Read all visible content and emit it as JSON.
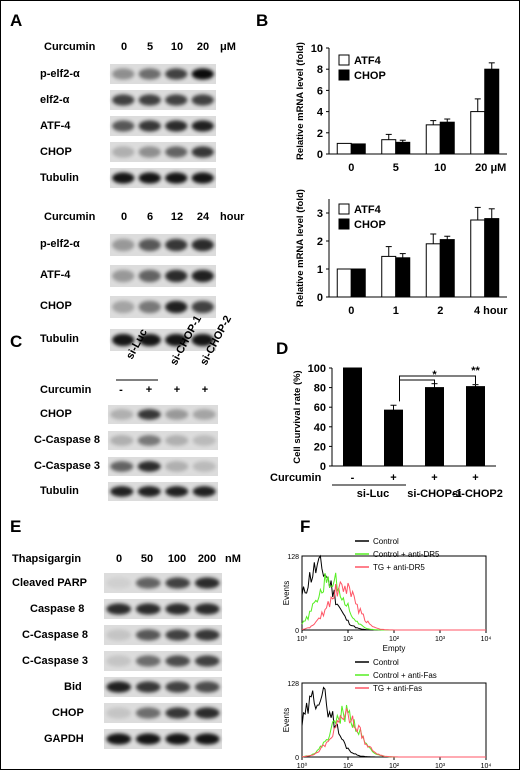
{
  "panel_labels": {
    "A": "A",
    "B": "B",
    "C": "C",
    "D": "D",
    "E": "E",
    "F": "F"
  },
  "blot_A1": {
    "treatment": "Curcumin",
    "doses": [
      "0",
      "5",
      "10",
      "20"
    ],
    "unit": "μM",
    "rows": [
      "p-elf2-α",
      "elf2-α",
      "ATF-4",
      "CHOP",
      "Tubulin"
    ]
  },
  "blot_A2": {
    "treatment": "Curcumin",
    "times": [
      "0",
      "6",
      "12",
      "24"
    ],
    "unit": "hour",
    "rows": [
      "p-elf2-α",
      "ATF-4",
      "CHOP",
      "Tubulin"
    ]
  },
  "blot_C": {
    "groups": [
      "si-Luc",
      "si-CHOP-1",
      "si-CHOP-2"
    ],
    "treatment": "Curcumin",
    "curcumin_signs": [
      "-",
      "+",
      "+",
      "+"
    ],
    "rows": [
      "CHOP",
      "C-Caspase 8",
      "C-Caspase 3",
      "Tubulin"
    ]
  },
  "blot_E": {
    "treatment": "Thapsigargin",
    "doses": [
      "0",
      "50",
      "100",
      "200"
    ],
    "unit": "nM",
    "rows": [
      "Cleaved PARP",
      "Caspase 8",
      "C-Caspase 8",
      "C-Caspase 3",
      "Bid",
      "CHOP",
      "GAPDH"
    ]
  },
  "chart_data": [
    {
      "id": "B-top",
      "type": "bar",
      "ylabel": "Relative mRNA level (fold)",
      "ylim": [
        0,
        10
      ],
      "yticks": [
        "0",
        "2",
        "4",
        "6",
        "8",
        "10"
      ],
      "categories": [
        "0",
        "5",
        "10",
        "20 μM"
      ],
      "series": [
        {
          "name": "ATF4",
          "values": [
            1.0,
            1.35,
            2.75,
            4.0
          ],
          "errors": [
            0.0,
            0.5,
            0.4,
            1.2
          ],
          "color": "#ffffff"
        },
        {
          "name": "CHOP",
          "values": [
            0.95,
            1.1,
            3.0,
            8.0
          ],
          "errors": [
            0.0,
            0.2,
            0.3,
            0.6
          ],
          "color": "#000000"
        }
      ],
      "legend": "top-left"
    },
    {
      "id": "B-bottom",
      "type": "bar",
      "ylabel": "Relative mRNA level (fold)",
      "ylim": [
        0,
        3.5
      ],
      "yticks": [
        "0",
        "1",
        "2",
        "3"
      ],
      "categories": [
        "0",
        "1",
        "2",
        "4 hour"
      ],
      "series": [
        {
          "name": "ATF4",
          "values": [
            1.0,
            1.45,
            1.9,
            2.75
          ],
          "errors": [
            0.0,
            0.35,
            0.35,
            0.45
          ],
          "color": "#ffffff"
        },
        {
          "name": "CHOP",
          "values": [
            1.0,
            1.4,
            2.05,
            2.8
          ],
          "errors": [
            0.0,
            0.15,
            0.12,
            0.35
          ],
          "color": "#000000"
        }
      ],
      "legend": "top-left"
    },
    {
      "id": "D",
      "type": "bar",
      "ylabel": "Cell survival rate (%)",
      "ylim": [
        0,
        100
      ],
      "yticks": [
        "0",
        "20",
        "40",
        "60",
        "80",
        "100"
      ],
      "categories": [
        "-",
        "+",
        "+",
        "+"
      ],
      "row_label": "Curcumin",
      "groups": [
        "si-Luc",
        "si-CHOP-1",
        "si-CHOP2"
      ],
      "series": [
        {
          "values": [
            100,
            57,
            80,
            81
          ],
          "errors": [
            0,
            5,
            4,
            2
          ],
          "color": "#000000"
        }
      ],
      "significance": [
        {
          "from": 1,
          "to": 2,
          "label": "*"
        },
        {
          "from": 1,
          "to": 3,
          "label": "**"
        }
      ]
    },
    {
      "id": "F-top",
      "type": "line",
      "xscale": "log",
      "xlim": [
        1,
        10000
      ],
      "ylim": [
        0,
        128
      ],
      "xlabel": "Empty",
      "ylabel": "Events",
      "xticks": [
        "10⁰",
        "10¹",
        "10²",
        "10³",
        "10⁴"
      ],
      "yticks": [
        "0",
        "128"
      ],
      "series": [
        {
          "name": "Control",
          "color": "#000000",
          "peak": 2.3,
          "spread": 0.32,
          "height": 108
        },
        {
          "name": "Control + anti-DR5",
          "color": "#55ee22",
          "peak": 4.2,
          "spread": 0.3,
          "height": 88
        },
        {
          "name": "TG + anti-DR5",
          "color": "#ff5566",
          "peak": 7.5,
          "spread": 0.3,
          "height": 76
        }
      ],
      "legend": "top-right"
    },
    {
      "id": "F-bottom",
      "type": "line",
      "xscale": "log",
      "xlim": [
        1,
        10000
      ],
      "ylim": [
        0,
        128
      ],
      "xlabel": "Empty",
      "ylabel": "Events",
      "xticks": [
        "10⁰",
        "10¹",
        "10²",
        "10³",
        "10⁴"
      ],
      "yticks": [
        "0",
        "128"
      ],
      "series": [
        {
          "name": "Control",
          "color": "#000000",
          "peak": 2.3,
          "spread": 0.32,
          "height": 108
        },
        {
          "name": "Control + anti-Fas",
          "color": "#55ee22",
          "peak": 8.5,
          "spread": 0.3,
          "height": 75
        },
        {
          "name": "TG + anti-Fas",
          "color": "#ff5566",
          "peak": 9.0,
          "spread": 0.3,
          "height": 72
        }
      ],
      "legend": "top-right"
    }
  ]
}
